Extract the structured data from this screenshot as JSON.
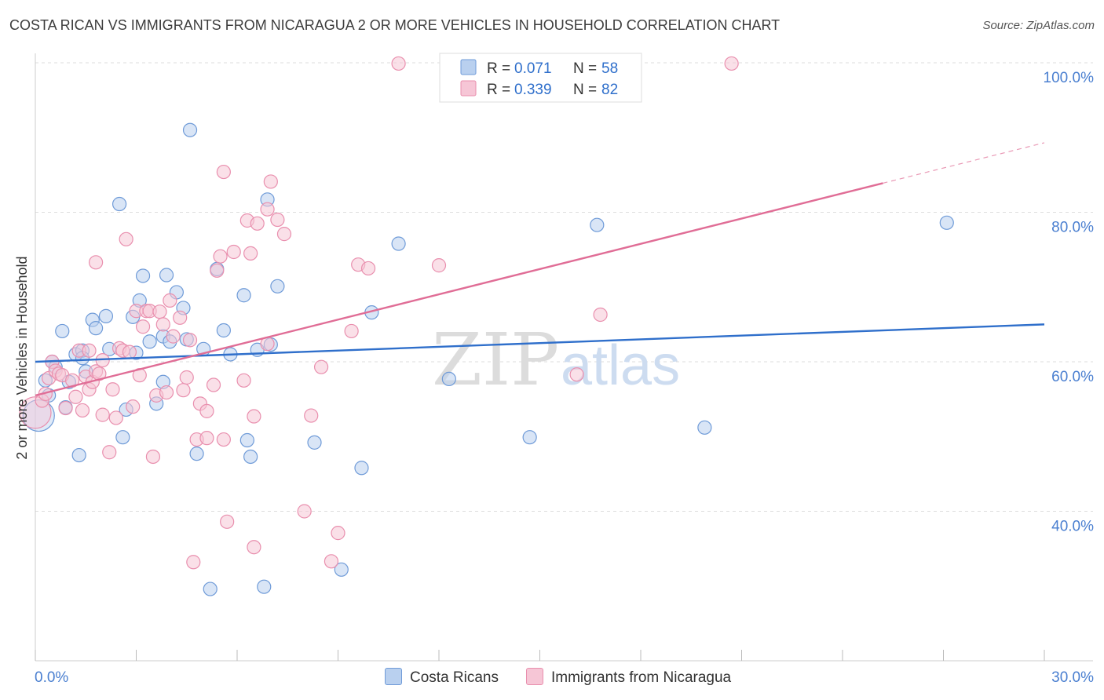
{
  "title": "COSTA RICAN VS IMMIGRANTS FROM NICARAGUA 2 OR MORE VEHICLES IN HOUSEHOLD CORRELATION CHART",
  "source": "Source: ZipAtlas.com",
  "watermark": {
    "zip": "ZIP",
    "atlas": "atlas"
  },
  "colors": {
    "blue_fill": "#b9d0ef",
    "blue_stroke": "#6f9bd8",
    "blue_line": "#2f6fcb",
    "pink_fill": "#f6c6d6",
    "pink_stroke": "#e98fae",
    "pink_line": "#e06d96",
    "axis_label": "#4a7fd0",
    "grid": "#dddddd"
  },
  "chart_data": {
    "type": "scatter",
    "xlabel": "",
    "ylabel": "2 or more Vehicles in Household",
    "xlim": [
      0,
      30
    ],
    "ylim": [
      20,
      100
    ],
    "x_tick_labels": [
      "0.0%",
      "30.0%"
    ],
    "y_ticks": [
      40,
      60,
      80,
      100
    ],
    "y_tick_labels": [
      "40.0%",
      "60.0%",
      "80.0%",
      "100.0%"
    ],
    "grid": "horizontal dashed",
    "legend": [
      {
        "r_label": "R =",
        "r_value": "0.071",
        "n_label": "N =",
        "n_value": "58"
      },
      {
        "r_label": "R =",
        "r_value": "0.339",
        "n_label": "N =",
        "n_value": "82"
      }
    ],
    "series": [
      {
        "name": "Costa Ricans",
        "color": "#6f9bd8",
        "trend": {
          "x": [
            0,
            30
          ],
          "y": [
            60.0,
            65.0
          ],
          "dashed_from_x": null
        },
        "points": [
          {
            "x": 0.1,
            "y": 52.8,
            "big": true
          },
          {
            "x": 0.3,
            "y": 57.5
          },
          {
            "x": 0.4,
            "y": 55.5
          },
          {
            "x": 0.5,
            "y": 60.0
          },
          {
            "x": 0.6,
            "y": 59.3
          },
          {
            "x": 0.8,
            "y": 64.1
          },
          {
            "x": 0.9,
            "y": 53.9
          },
          {
            "x": 1.0,
            "y": 57.3
          },
          {
            "x": 1.2,
            "y": 61.0
          },
          {
            "x": 1.3,
            "y": 47.5
          },
          {
            "x": 1.4,
            "y": 61.5
          },
          {
            "x": 1.4,
            "y": 60.5
          },
          {
            "x": 1.5,
            "y": 58.7
          },
          {
            "x": 1.7,
            "y": 65.6
          },
          {
            "x": 1.8,
            "y": 64.5
          },
          {
            "x": 2.1,
            "y": 66.1
          },
          {
            "x": 2.2,
            "y": 61.7
          },
          {
            "x": 2.5,
            "y": 81.1
          },
          {
            "x": 2.6,
            "y": 49.9
          },
          {
            "x": 2.7,
            "y": 53.6
          },
          {
            "x": 2.9,
            "y": 66.0
          },
          {
            "x": 3.0,
            "y": 61.2
          },
          {
            "x": 3.1,
            "y": 68.2
          },
          {
            "x": 3.2,
            "y": 71.5
          },
          {
            "x": 3.4,
            "y": 62.7
          },
          {
            "x": 3.6,
            "y": 54.4
          },
          {
            "x": 3.8,
            "y": 57.3
          },
          {
            "x": 3.8,
            "y": 63.4
          },
          {
            "x": 3.9,
            "y": 71.6
          },
          {
            "x": 4.0,
            "y": 62.7
          },
          {
            "x": 4.2,
            "y": 69.3
          },
          {
            "x": 4.4,
            "y": 67.2
          },
          {
            "x": 4.5,
            "y": 63.0
          },
          {
            "x": 4.6,
            "y": 91.0
          },
          {
            "x": 4.8,
            "y": 47.7
          },
          {
            "x": 5.0,
            "y": 61.7
          },
          {
            "x": 5.2,
            "y": 29.6
          },
          {
            "x": 5.4,
            "y": 72.4
          },
          {
            "x": 5.6,
            "y": 64.2
          },
          {
            "x": 5.8,
            "y": 61.0
          },
          {
            "x": 6.2,
            "y": 68.9
          },
          {
            "x": 6.3,
            "y": 49.5
          },
          {
            "x": 6.4,
            "y": 47.3
          },
          {
            "x": 6.6,
            "y": 61.6
          },
          {
            "x": 6.8,
            "y": 29.9
          },
          {
            "x": 6.9,
            "y": 81.7
          },
          {
            "x": 7.0,
            "y": 62.3
          },
          {
            "x": 7.2,
            "y": 70.1
          },
          {
            "x": 8.3,
            "y": 49.2
          },
          {
            "x": 9.1,
            "y": 32.2
          },
          {
            "x": 9.7,
            "y": 45.8
          },
          {
            "x": 10.0,
            "y": 66.6
          },
          {
            "x": 10.8,
            "y": 75.8
          },
          {
            "x": 12.3,
            "y": 57.7
          },
          {
            "x": 14.7,
            "y": 49.9
          },
          {
            "x": 16.7,
            "y": 78.3
          },
          {
            "x": 19.9,
            "y": 51.2
          },
          {
            "x": 27.1,
            "y": 78.6
          }
        ]
      },
      {
        "name": "Immigrants from Nicaragua",
        "color": "#e98fae",
        "trend": {
          "x": [
            0,
            30
          ],
          "y": [
            55.5,
            89.3
          ],
          "dashed_from_x": 25.2
        },
        "points": [
          {
            "x": 0.0,
            "y": 53.2,
            "big": true
          },
          {
            "x": 0.2,
            "y": 54.8
          },
          {
            "x": 0.3,
            "y": 55.7
          },
          {
            "x": 0.4,
            "y": 57.8
          },
          {
            "x": 0.5,
            "y": 60.0
          },
          {
            "x": 0.6,
            "y": 58.8
          },
          {
            "x": 0.7,
            "y": 58.4
          },
          {
            "x": 0.8,
            "y": 58.2
          },
          {
            "x": 0.9,
            "y": 53.8
          },
          {
            "x": 1.1,
            "y": 57.5
          },
          {
            "x": 1.2,
            "y": 55.3
          },
          {
            "x": 1.3,
            "y": 61.5
          },
          {
            "x": 1.4,
            "y": 53.5
          },
          {
            "x": 1.5,
            "y": 58.0
          },
          {
            "x": 1.6,
            "y": 56.3
          },
          {
            "x": 1.7,
            "y": 57.3
          },
          {
            "x": 1.8,
            "y": 73.3
          },
          {
            "x": 1.8,
            "y": 58.7
          },
          {
            "x": 1.9,
            "y": 58.4
          },
          {
            "x": 2.0,
            "y": 52.9
          },
          {
            "x": 2.2,
            "y": 47.9
          },
          {
            "x": 2.3,
            "y": 56.3
          },
          {
            "x": 2.4,
            "y": 52.5
          },
          {
            "x": 2.5,
            "y": 61.8
          },
          {
            "x": 2.6,
            "y": 61.5
          },
          {
            "x": 2.7,
            "y": 76.4
          },
          {
            "x": 2.8,
            "y": 61.3
          },
          {
            "x": 2.9,
            "y": 54.0
          },
          {
            "x": 3.0,
            "y": 66.8
          },
          {
            "x": 3.1,
            "y": 58.2
          },
          {
            "x": 3.2,
            "y": 64.7
          },
          {
            "x": 3.3,
            "y": 66.8
          },
          {
            "x": 3.4,
            "y": 66.8
          },
          {
            "x": 3.5,
            "y": 47.3
          },
          {
            "x": 3.6,
            "y": 55.5
          },
          {
            "x": 3.7,
            "y": 66.7
          },
          {
            "x": 3.8,
            "y": 65.0
          },
          {
            "x": 3.9,
            "y": 55.9
          },
          {
            "x": 4.0,
            "y": 68.2
          },
          {
            "x": 4.1,
            "y": 63.4
          },
          {
            "x": 4.3,
            "y": 65.9
          },
          {
            "x": 4.4,
            "y": 56.2
          },
          {
            "x": 4.5,
            "y": 57.9
          },
          {
            "x": 4.6,
            "y": 62.9
          },
          {
            "x": 4.7,
            "y": 33.2
          },
          {
            "x": 4.8,
            "y": 49.6
          },
          {
            "x": 4.9,
            "y": 54.4
          },
          {
            "x": 5.1,
            "y": 49.8
          },
          {
            "x": 5.1,
            "y": 53.4
          },
          {
            "x": 5.3,
            "y": 56.9
          },
          {
            "x": 5.4,
            "y": 72.2
          },
          {
            "x": 5.5,
            "y": 74.1
          },
          {
            "x": 5.6,
            "y": 85.4
          },
          {
            "x": 5.6,
            "y": 49.6
          },
          {
            "x": 5.7,
            "y": 38.6
          },
          {
            "x": 5.9,
            "y": 74.7
          },
          {
            "x": 6.2,
            "y": 57.5
          },
          {
            "x": 6.3,
            "y": 78.9
          },
          {
            "x": 6.4,
            "y": 74.5
          },
          {
            "x": 6.5,
            "y": 52.7
          },
          {
            "x": 6.5,
            "y": 35.2
          },
          {
            "x": 6.6,
            "y": 78.5
          },
          {
            "x": 6.9,
            "y": 62.4
          },
          {
            "x": 6.9,
            "y": 80.4
          },
          {
            "x": 7.0,
            "y": 84.1
          },
          {
            "x": 7.2,
            "y": 79.0
          },
          {
            "x": 7.4,
            "y": 77.1
          },
          {
            "x": 8.0,
            "y": 40.0
          },
          {
            "x": 8.2,
            "y": 52.8
          },
          {
            "x": 8.5,
            "y": 59.3
          },
          {
            "x": 8.8,
            "y": 33.3
          },
          {
            "x": 9.0,
            "y": 37.1
          },
          {
            "x": 9.4,
            "y": 64.1
          },
          {
            "x": 9.6,
            "y": 73.0
          },
          {
            "x": 9.9,
            "y": 72.5
          },
          {
            "x": 10.8,
            "y": 99.9
          },
          {
            "x": 12.0,
            "y": 72.9
          },
          {
            "x": 16.1,
            "y": 58.3
          },
          {
            "x": 16.8,
            "y": 66.3
          },
          {
            "x": 20.7,
            "y": 99.9
          },
          {
            "x": 1.6,
            "y": 61.5
          },
          {
            "x": 2.0,
            "y": 60.2
          }
        ]
      }
    ]
  }
}
